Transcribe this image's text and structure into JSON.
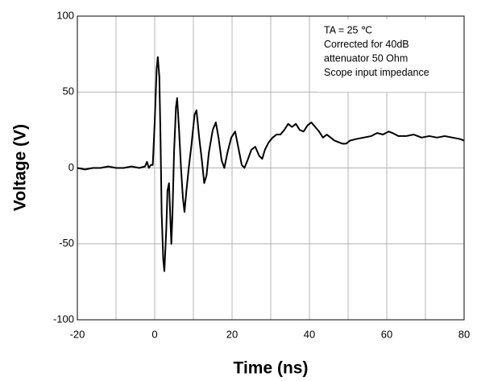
{
  "chart_data": {
    "type": "line",
    "xlabel": "Time  (ns)",
    "ylabel": "Voltage (V)",
    "annotation": [
      "TA = 25 ℃",
      "Corrected for 40dB",
      "attenuator 50 Ohm",
      "Scope input impedance"
    ],
    "xlim": [
      -20,
      80
    ],
    "ylim": [
      -100,
      100
    ],
    "xticks": [
      -20,
      0,
      20,
      40,
      60,
      80
    ],
    "xminorticks": [
      -10,
      10,
      30,
      50,
      70
    ],
    "yticks": [
      -100,
      -50,
      0,
      50,
      100
    ],
    "grid": true,
    "color": "#000000",
    "x": [
      -20,
      -18,
      -16,
      -14,
      -12,
      -10,
      -8,
      -6,
      -4,
      -2.5,
      -2,
      -1.5,
      -1,
      -0.5,
      0,
      0.5,
      0.8,
      1.2,
      1.5,
      1.8,
      2.2,
      2.5,
      3,
      3.3,
      3.7,
      4,
      4.3,
      4.6,
      5,
      5.5,
      5.8,
      6.3,
      6.8,
      7.3,
      7.7,
      8.2,
      8.8,
      9.5,
      10.3,
      10.8,
      11.5,
      12.2,
      12.8,
      13.4,
      14,
      15,
      15.8,
      16.5,
      17.3,
      18,
      18.8,
      19.8,
      20.8,
      21.5,
      22.5,
      23.2,
      24,
      25,
      26,
      27,
      27.8,
      28.5,
      29.5,
      30.5,
      31.5,
      32.5,
      33.5,
      34.5,
      35.5,
      36.5,
      37.5,
      38.5,
      39.5,
      40.5,
      41.5,
      42.5,
      43.5,
      44.5,
      45.5,
      46.5,
      47.5,
      48.5,
      49.5,
      50.5,
      52,
      54,
      56,
      57.5,
      59,
      60.5,
      61.5,
      63,
      65,
      67,
      69,
      71,
      73,
      75,
      77,
      79,
      80
    ],
    "values": [
      0,
      -1,
      0,
      0,
      1,
      0,
      0,
      1,
      0,
      1,
      4,
      0,
      2,
      2,
      30,
      65,
      73,
      60,
      20,
      -30,
      -60,
      -68,
      -40,
      -15,
      -10,
      -30,
      -50,
      -30,
      10,
      40,
      46,
      25,
      0,
      -20,
      -29,
      -15,
      0,
      15,
      35,
      38,
      20,
      5,
      -10,
      -5,
      10,
      25,
      30,
      20,
      5,
      0,
      10,
      20,
      24,
      15,
      2,
      0,
      5,
      12,
      14,
      8,
      6,
      12,
      17,
      20,
      22,
      22,
      25,
      29,
      27,
      29,
      25,
      24,
      28,
      30,
      27,
      24,
      20,
      22,
      20,
      18,
      17,
      16,
      16,
      18,
      19,
      20,
      21,
      23,
      22,
      24,
      23,
      21,
      21,
      22,
      20,
      21,
      20,
      21,
      20,
      19,
      18
    ]
  }
}
